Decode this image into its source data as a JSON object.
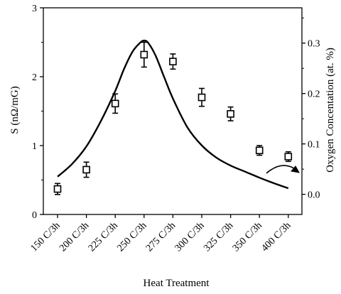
{
  "chart_data": {
    "type": "scatter",
    "xlabel": "Heat Treatment",
    "categories": [
      "150 C/3h",
      "200 C/3h",
      "225 C/3h",
      "250 C/3h",
      "275 C/3h",
      "300 C/3h",
      "325 C/3h",
      "350 C/3h",
      "400 C/3h"
    ],
    "ylabel_left": "S (nΩ/mG)",
    "ylabel_right": "Oxygen Concentation (at. %)",
    "ylim_left": [
      0,
      3
    ],
    "ylim_right": [
      -0.04,
      0.37
    ],
    "yticks_left": [
      0,
      1,
      2,
      3
    ],
    "yticks_right": [
      0.0,
      0.1,
      0.2,
      0.3
    ],
    "series": [
      {
        "axis": "left",
        "marker": "open-square",
        "values": [
          0.37,
          0.65,
          1.61,
          2.32,
          2.22,
          1.7,
          1.46,
          0.93,
          0.84
        ],
        "errors": [
          0.08,
          0.11,
          0.14,
          0.18,
          0.11,
          0.13,
          0.1,
          0.07,
          0.07
        ]
      },
      {
        "axis": "right",
        "style": "line",
        "x": [
          0,
          0.5,
          1,
          1.5,
          2,
          2.3,
          2.6,
          2.85,
          3.0,
          3.15,
          3.4,
          3.7,
          4,
          4.5,
          5,
          5.5,
          6,
          6.5,
          7,
          7.5,
          8
        ],
        "y": [
          0.035,
          0.06,
          0.095,
          0.145,
          0.205,
          0.248,
          0.283,
          0.3,
          0.305,
          0.3,
          0.275,
          0.232,
          0.19,
          0.133,
          0.097,
          0.073,
          0.057,
          0.045,
          0.033,
          0.022,
          0.012
        ]
      }
    ],
    "annotation": "curved arrow pointing to right axis",
    "grid": false
  }
}
